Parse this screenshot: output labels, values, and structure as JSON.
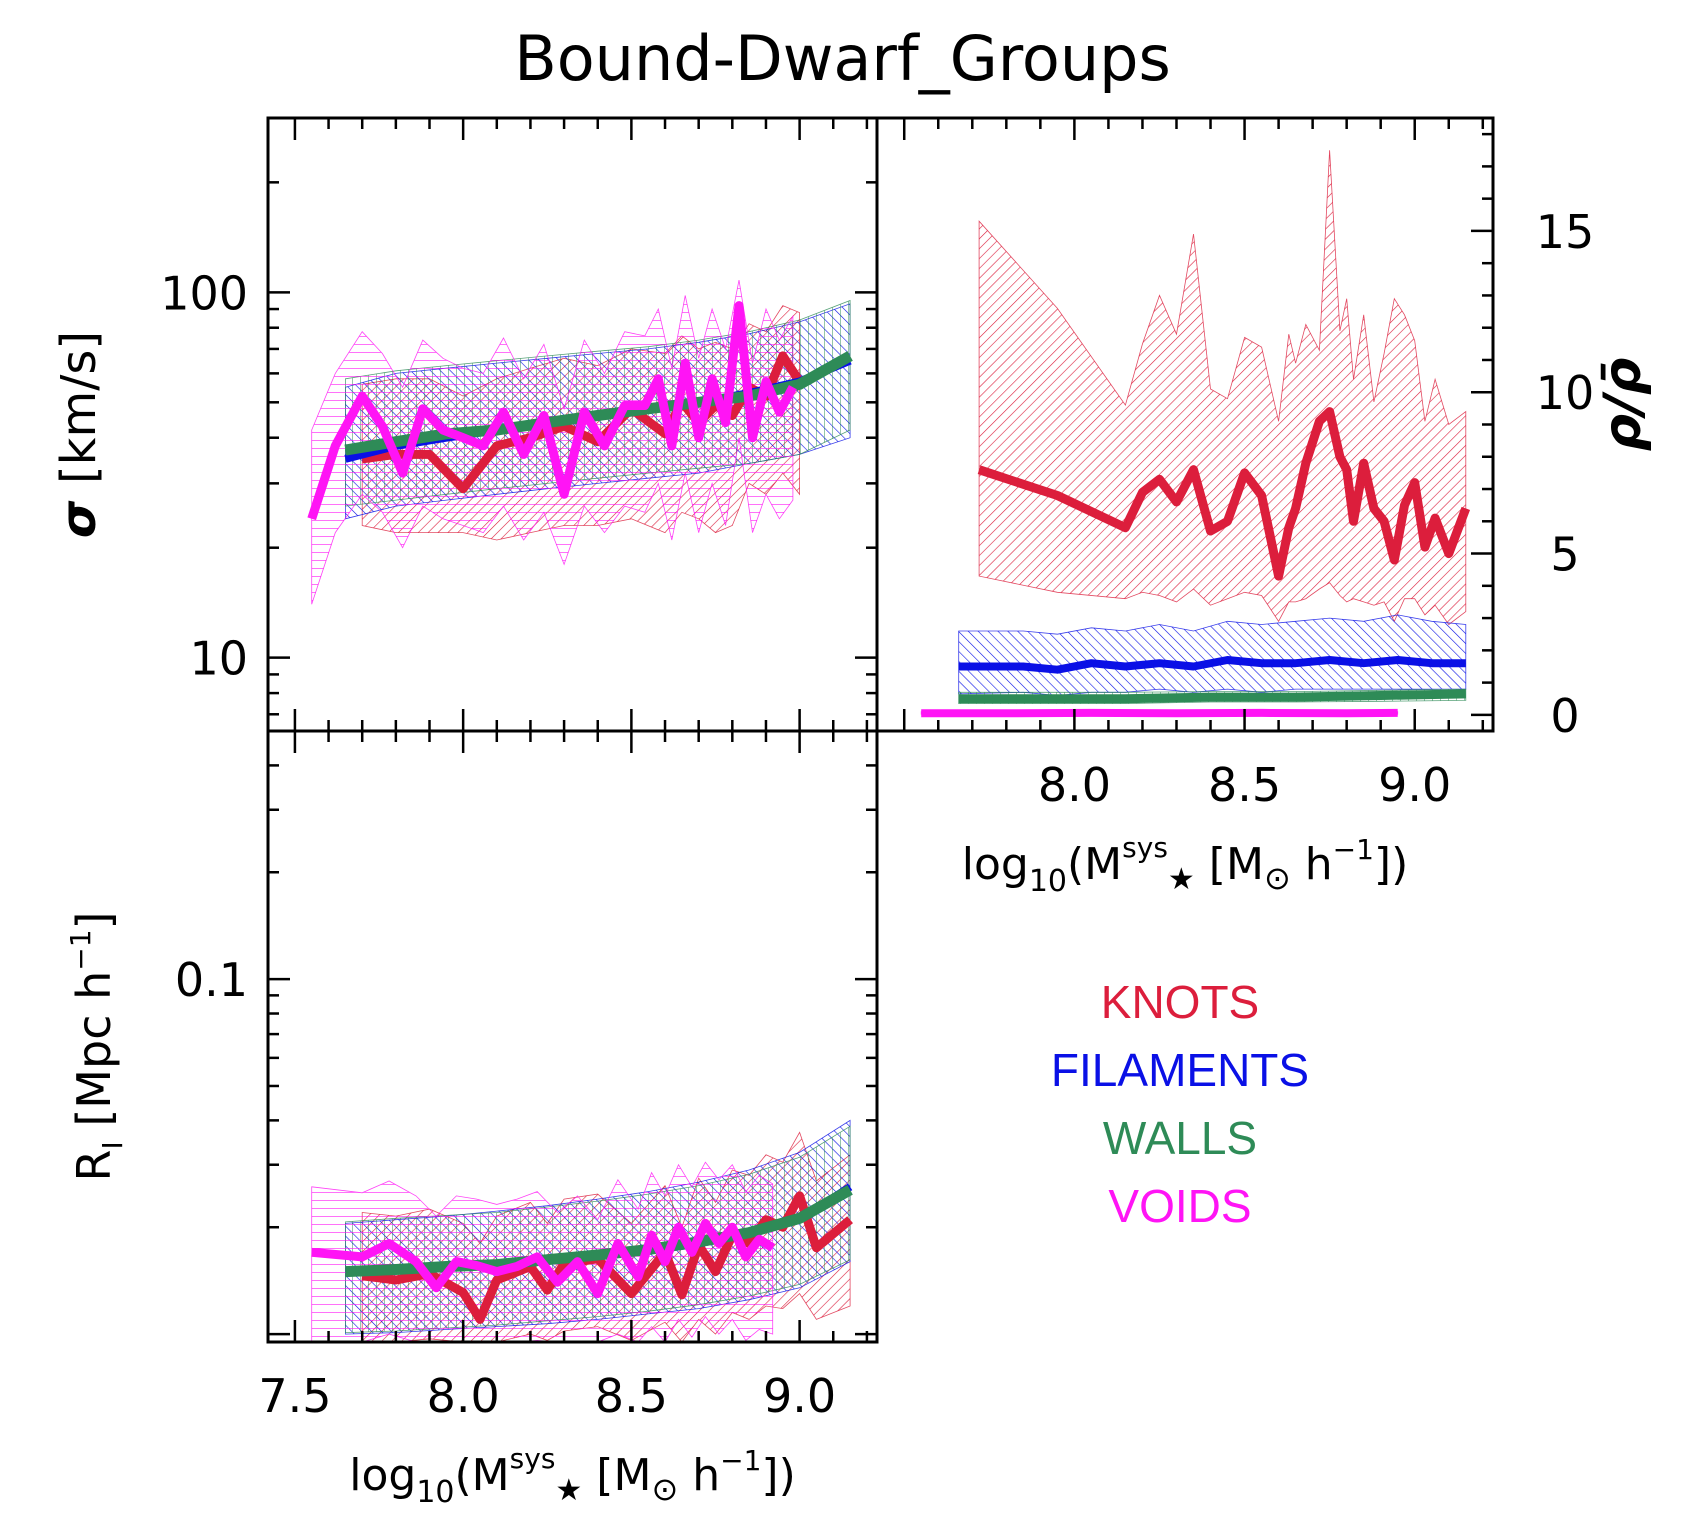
{
  "title": "Bound-Dwarf_Groups",
  "colors": {
    "knots": "#dc1e3c",
    "filaments": "#0a10e6",
    "walls": "#2e8b57",
    "voids": "#ff14f5",
    "axes": "#000000"
  },
  "legend": [
    {
      "label": "KNOTS",
      "color_key": "knots"
    },
    {
      "label": "FILAMENTS",
      "color_key": "filaments"
    },
    {
      "label": "WALLS",
      "color_key": "walls"
    },
    {
      "label": "VOIDS",
      "color_key": "voids"
    }
  ],
  "chart_data": [
    {
      "id": "sigma",
      "type": "line",
      "yscale": "log",
      "xlim": [
        7.42,
        9.23
      ],
      "ylim": [
        6.3,
        300
      ],
      "ylabel_main": "σ",
      "ylabel_unit": "[km/s]",
      "yticks": [
        {
          "value": 10,
          "label": "10"
        },
        {
          "value": 100,
          "label": "100"
        }
      ],
      "xticks": [],
      "series": [
        {
          "name": "KNOTS",
          "color_key": "knots",
          "width": 9,
          "x": [
            7.7,
            7.8,
            7.9,
            8.0,
            8.1,
            8.2,
            8.3,
            8.4,
            8.5,
            8.6,
            8.65,
            8.7,
            8.75,
            8.8,
            8.85,
            8.9,
            8.95,
            9.0
          ],
          "y": [
            35,
            36,
            36,
            29,
            38,
            40,
            43,
            39,
            48,
            41,
            50,
            44,
            49,
            46,
            55,
            52,
            67,
            57
          ],
          "lo": [
            23,
            22,
            22,
            22,
            21,
            22,
            23,
            23,
            24,
            22,
            25,
            24,
            22,
            23,
            30,
            28,
            32,
            28
          ],
          "hi": [
            56,
            58,
            58,
            52,
            58,
            62,
            66,
            63,
            70,
            68,
            76,
            70,
            73,
            70,
            82,
            78,
            92,
            88
          ]
        },
        {
          "name": "FILAMENTS",
          "color_key": "filaments",
          "width": 8,
          "x": [
            7.65,
            7.8,
            7.95,
            8.1,
            8.25,
            8.4,
            8.55,
            8.7,
            8.85,
            9.0,
            9.15
          ],
          "y": [
            35,
            38,
            40,
            42,
            44,
            46,
            48,
            50,
            53,
            57,
            65
          ],
          "lo": [
            24,
            26,
            27,
            28,
            29,
            30,
            31,
            32,
            34,
            36,
            40
          ],
          "hi": [
            55,
            60,
            62,
            64,
            66,
            68,
            70,
            73,
            77,
            83,
            93
          ]
        },
        {
          "name": "WALLS",
          "color_key": "walls",
          "width": 11,
          "x": [
            7.65,
            7.8,
            7.95,
            8.1,
            8.25,
            8.4,
            8.55,
            8.7,
            8.85,
            9.0,
            9.15
          ],
          "y": [
            37,
            39,
            41,
            42,
            44,
            46,
            48,
            50,
            52,
            56,
            67
          ],
          "lo": [
            26,
            27,
            28,
            29,
            30,
            31,
            32,
            33,
            34,
            36,
            42
          ],
          "hi": [
            58,
            61,
            63,
            65,
            67,
            69,
            71,
            74,
            78,
            84,
            95
          ]
        },
        {
          "name": "VOIDS",
          "color_key": "voids",
          "width": 9,
          "x": [
            7.55,
            7.62,
            7.7,
            7.76,
            7.82,
            7.88,
            7.94,
            8.0,
            8.06,
            8.12,
            8.18,
            8.24,
            8.3,
            8.36,
            8.42,
            8.48,
            8.54,
            8.58,
            8.62,
            8.66,
            8.7,
            8.74,
            8.78,
            8.82,
            8.86,
            8.9,
            8.94,
            8.98
          ],
          "y": [
            24,
            38,
            52,
            43,
            32,
            48,
            42,
            40,
            38,
            47,
            36,
            46,
            28,
            47,
            38,
            49,
            49,
            58,
            38,
            64,
            40,
            58,
            44,
            92,
            40,
            57,
            47,
            55
          ],
          "lo": [
            14,
            22,
            28,
            25,
            20,
            26,
            24,
            23,
            22,
            26,
            21,
            25,
            18,
            26,
            22,
            26,
            25,
            30,
            21,
            32,
            22,
            30,
            23,
            40,
            22,
            28,
            24,
            27
          ],
          "hi": [
            42,
            60,
            78,
            68,
            55,
            74,
            66,
            62,
            60,
            75,
            58,
            72,
            48,
            74,
            60,
            78,
            76,
            90,
            62,
            98,
            66,
            90,
            70,
            108,
            64,
            90,
            74,
            86
          ]
        }
      ]
    },
    {
      "id": "rho",
      "type": "line",
      "yscale": "linear",
      "xlim": [
        7.42,
        9.23
      ],
      "ylim": [
        -0.5,
        18.5
      ],
      "ylabel": "ρ/ρ̄",
      "yticks": [
        {
          "value": 0,
          "label": "0"
        },
        {
          "value": 5,
          "label": "5"
        },
        {
          "value": 10,
          "label": "10"
        },
        {
          "value": 15,
          "label": "15"
        }
      ],
      "xticks": [
        {
          "value": 8.0,
          "label": "8.0"
        },
        {
          "value": 8.5,
          "label": "8.5"
        },
        {
          "value": 9.0,
          "label": "9.0"
        }
      ],
      "xlabel": {
        "base": "log",
        "sub1": "10",
        "mid": "(M",
        "sup": "sys",
        "sub2": "★",
        "unit": "[M",
        "sub3": "⊙",
        "rest": " h",
        "sup2": "−1",
        "end": "])"
      },
      "series": [
        {
          "name": "KNOTS",
          "color_key": "knots",
          "width": 9,
          "x": [
            7.72,
            7.95,
            8.15,
            8.2,
            8.25,
            8.3,
            8.35,
            8.4,
            8.45,
            8.5,
            8.55,
            8.6,
            8.63,
            8.65,
            8.68,
            8.72,
            8.75,
            8.78,
            8.8,
            8.82,
            8.85,
            8.88,
            8.91,
            8.94,
            8.97,
            9.0,
            9.03,
            9.06,
            9.1,
            9.15
          ],
          "y": [
            7.6,
            6.8,
            5.8,
            6.9,
            7.3,
            6.6,
            7.6,
            5.7,
            6.0,
            7.5,
            6.8,
            4.3,
            5.8,
            6.4,
            7.8,
            9.1,
            9.4,
            8.0,
            7.6,
            6.0,
            7.8,
            6.4,
            6.0,
            4.8,
            6.5,
            7.2,
            5.2,
            6.1,
            5.0,
            6.4
          ],
          "lo": [
            4.3,
            3.8,
            3.6,
            3.8,
            3.7,
            3.5,
            3.9,
            3.4,
            3.6,
            3.8,
            3.7,
            2.9,
            3.5,
            3.5,
            3.6,
            3.9,
            4.1,
            3.7,
            3.5,
            3.6,
            3.5,
            3.4,
            3.5,
            2.9,
            3.6,
            3.6,
            3.1,
            3.4,
            2.8,
            3.2
          ],
          "hi": [
            15.3,
            12.6,
            9.6,
            11.5,
            13.0,
            11.8,
            14.9,
            10.1,
            9.8,
            11.7,
            11.4,
            9.1,
            11.8,
            10.9,
            12.1,
            11.3,
            17.5,
            11.9,
            12.9,
            10.4,
            12.4,
            9.7,
            11.2,
            12.9,
            12.4,
            11.6,
            9.1,
            10.4,
            9.0,
            9.4
          ]
        },
        {
          "name": "FILAMENTS",
          "color_key": "filaments",
          "width": 8,
          "x": [
            7.66,
            7.85,
            7.95,
            8.05,
            8.15,
            8.25,
            8.35,
            8.45,
            8.55,
            8.65,
            8.75,
            8.85,
            8.95,
            9.05,
            9.15
          ],
          "y": [
            1.5,
            1.5,
            1.4,
            1.6,
            1.5,
            1.6,
            1.5,
            1.7,
            1.6,
            1.6,
            1.7,
            1.6,
            1.7,
            1.6,
            1.6
          ],
          "lo": [
            0.65,
            0.7,
            0.6,
            0.7,
            0.7,
            0.8,
            0.7,
            0.8,
            0.7,
            0.8,
            0.8,
            0.8,
            0.8,
            0.8,
            0.8
          ],
          "hi": [
            2.6,
            2.6,
            2.5,
            2.7,
            2.6,
            2.8,
            2.6,
            2.9,
            2.8,
            2.9,
            3.0,
            2.9,
            3.1,
            2.9,
            2.8
          ]
        },
        {
          "name": "WALLS",
          "color_key": "walls",
          "width": 9,
          "x": [
            7.66,
            7.9,
            8.15,
            8.4,
            8.65,
            8.9,
            9.15
          ],
          "y": [
            0.5,
            0.5,
            0.5,
            0.55,
            0.55,
            0.6,
            0.65
          ],
          "lo": [
            0.35,
            0.35,
            0.35,
            0.4,
            0.4,
            0.42,
            0.45
          ],
          "hi": [
            0.7,
            0.7,
            0.7,
            0.72,
            0.72,
            0.76,
            0.8
          ]
        },
        {
          "name": "VOIDS",
          "color_key": "voids",
          "width": 8,
          "x": [
            7.55,
            7.8,
            8.05,
            8.3,
            8.55,
            8.8,
            8.95
          ],
          "y": [
            0.05,
            0.05,
            0.06,
            0.05,
            0.06,
            0.05,
            0.06
          ],
          "lo": [
            0.02,
            0.02,
            0.02,
            0.02,
            0.02,
            0.02,
            0.02
          ],
          "hi": [
            0.1,
            0.1,
            0.1,
            0.1,
            0.1,
            0.1,
            0.1
          ]
        }
      ]
    },
    {
      "id": "radius",
      "type": "line",
      "yscale": "log",
      "xlim": [
        7.42,
        9.23
      ],
      "ylim": [
        0.0095,
        0.5
      ],
      "ylabel": "R",
      "ylabel_sub": "I",
      "ylabel_unit": "[Mpc h",
      "ylabel_sup": "−1",
      "ylabel_end": "]",
      "yticks": [
        {
          "value": 0.1,
          "label": "0.1"
        }
      ],
      "xticks": [
        {
          "value": 7.5,
          "label": "7.5"
        },
        {
          "value": 8.0,
          "label": "8.0"
        },
        {
          "value": 8.5,
          "label": "8.5"
        },
        {
          "value": 9.0,
          "label": "9.0"
        }
      ],
      "xlabel": {
        "base": "log",
        "sub1": "10",
        "mid": "(M",
        "sup": "sys",
        "sub2": "★",
        "unit": "[M",
        "sub3": "⊙",
        "rest": " h",
        "sup2": "−1",
        "end": "])"
      },
      "series": [
        {
          "name": "KNOTS",
          "color_key": "knots",
          "width": 9,
          "x": [
            7.7,
            7.8,
            7.9,
            8.0,
            8.05,
            8.1,
            8.2,
            8.25,
            8.3,
            8.4,
            8.5,
            8.6,
            8.65,
            8.7,
            8.75,
            8.8,
            8.85,
            8.9,
            8.95,
            9.0,
            9.05,
            9.15
          ],
          "y": [
            0.0146,
            0.0142,
            0.0148,
            0.0131,
            0.011,
            0.0142,
            0.0155,
            0.0133,
            0.0158,
            0.0163,
            0.013,
            0.017,
            0.0129,
            0.0178,
            0.015,
            0.019,
            0.018,
            0.021,
            0.02,
            0.0245,
            0.0175,
            0.021
          ],
          "lo": [
            0.0095,
            0.0095,
            0.0097,
            0.0095,
            0.0095,
            0.0095,
            0.01,
            0.0096,
            0.0102,
            0.0105,
            0.0096,
            0.0108,
            0.0095,
            0.011,
            0.01,
            0.0115,
            0.011,
            0.012,
            0.0118,
            0.013,
            0.011,
            0.012
          ],
          "hi": [
            0.022,
            0.0215,
            0.0225,
            0.0205,
            0.018,
            0.0215,
            0.0235,
            0.0205,
            0.024,
            0.0248,
            0.0205,
            0.0262,
            0.02,
            0.0275,
            0.0235,
            0.029,
            0.028,
            0.032,
            0.0305,
            0.037,
            0.027,
            0.032
          ]
        },
        {
          "name": "FILAMENTS",
          "color_key": "filaments",
          "width": 8,
          "x": [
            7.65,
            7.8,
            7.95,
            8.1,
            8.25,
            8.4,
            8.55,
            8.7,
            8.85,
            9.0,
            9.15
          ],
          "y": [
            0.015,
            0.0152,
            0.0155,
            0.0158,
            0.0162,
            0.0166,
            0.0172,
            0.018,
            0.0192,
            0.021,
            0.026
          ],
          "lo": [
            0.01,
            0.0101,
            0.0103,
            0.0105,
            0.0107,
            0.011,
            0.0114,
            0.0118,
            0.0125,
            0.0135,
            0.016
          ],
          "hi": [
            0.0205,
            0.021,
            0.0215,
            0.0222,
            0.023,
            0.024,
            0.0252,
            0.0268,
            0.029,
            0.0325,
            0.04
          ]
        },
        {
          "name": "WALLS",
          "color_key": "walls",
          "width": 11,
          "x": [
            7.65,
            7.8,
            7.95,
            8.1,
            8.25,
            8.4,
            8.55,
            8.7,
            8.85,
            9.0,
            9.15
          ],
          "y": [
            0.015,
            0.0152,
            0.0155,
            0.0157,
            0.0162,
            0.0167,
            0.0173,
            0.0182,
            0.0193,
            0.0212,
            0.0255
          ],
          "lo": [
            0.0101,
            0.0102,
            0.0104,
            0.0106,
            0.0109,
            0.0112,
            0.0116,
            0.0121,
            0.0128,
            0.0138,
            0.0162
          ],
          "hi": [
            0.0207,
            0.0212,
            0.0216,
            0.022,
            0.0228,
            0.0237,
            0.0248,
            0.0262,
            0.0282,
            0.0315,
            0.0385
          ]
        },
        {
          "name": "VOIDS",
          "color_key": "voids",
          "width": 9,
          "x": [
            7.55,
            7.7,
            7.78,
            7.86,
            7.92,
            7.98,
            8.04,
            8.1,
            8.16,
            8.22,
            8.28,
            8.34,
            8.4,
            8.46,
            8.52,
            8.56,
            8.6,
            8.64,
            8.68,
            8.72,
            8.76,
            8.8,
            8.84,
            8.88,
            8.92
          ],
          "y": [
            0.017,
            0.0165,
            0.018,
            0.016,
            0.0135,
            0.016,
            0.0156,
            0.015,
            0.0155,
            0.0165,
            0.014,
            0.016,
            0.013,
            0.018,
            0.0145,
            0.019,
            0.016,
            0.02,
            0.017,
            0.0205,
            0.018,
            0.02,
            0.0165,
            0.0185,
            0.0175
          ],
          "lo": [
            0.0095,
            0.0095,
            0.01,
            0.0095,
            0.0095,
            0.0095,
            0.0095,
            0.0095,
            0.0095,
            0.0096,
            0.0095,
            0.0095,
            0.0095,
            0.01,
            0.0095,
            0.0105,
            0.0095,
            0.011,
            0.0098,
            0.0112,
            0.01,
            0.011,
            0.0096,
            0.0103,
            0.01
          ],
          "hi": [
            0.026,
            0.025,
            0.027,
            0.0245,
            0.0215,
            0.0245,
            0.024,
            0.0232,
            0.024,
            0.0252,
            0.022,
            0.0245,
            0.021,
            0.0272,
            0.0225,
            0.0285,
            0.0245,
            0.03,
            0.026,
            0.0305,
            0.0272,
            0.03,
            0.0252,
            0.028,
            0.0265
          ]
        }
      ]
    }
  ]
}
